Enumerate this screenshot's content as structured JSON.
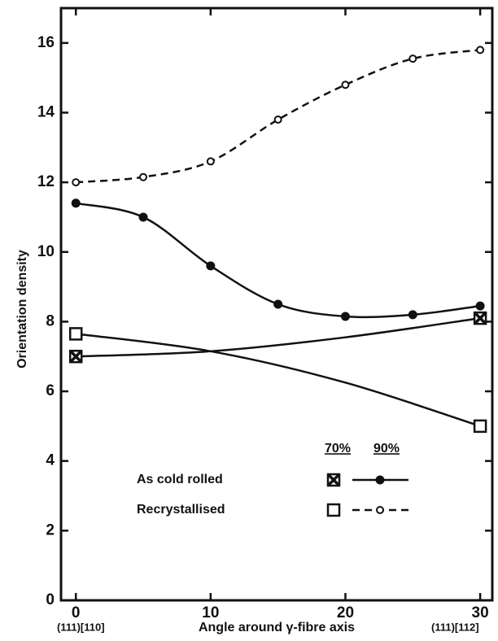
{
  "chart_data": {
    "type": "line",
    "ylabel": "Orientation density",
    "xlabel": "Angle around γ-fibre axis",
    "x_end_labels": [
      "(111)[110]",
      "(111)[112]"
    ],
    "xlim": [
      -1.1,
      30.9
    ],
    "ylim": [
      0,
      17
    ],
    "xticks": [
      0,
      10,
      20,
      30
    ],
    "yticks": [
      0,
      2,
      4,
      6,
      8,
      10,
      12,
      14,
      16
    ],
    "legend": {
      "columns": [
        "70%",
        "90%"
      ],
      "rows": [
        "As cold rolled",
        "Recrystallised"
      ]
    },
    "series": [
      {
        "color": "#111",
        "marker": "crossed-square",
        "dash": "solid",
        "x": [
          0,
          10,
          20,
          30
        ],
        "values": [
          7.0,
          7.15,
          7.55,
          8.1
        ],
        "marked": [
          true,
          false,
          false,
          true
        ]
      },
      {
        "color": "#111",
        "marker": "open-square",
        "dash": "solid",
        "x": [
          0,
          10,
          20,
          30
        ],
        "values": [
          7.65,
          7.15,
          6.25,
          5.0
        ],
        "marked": [
          true,
          false,
          false,
          true
        ]
      },
      {
        "color": "#111",
        "marker": "filled-circle",
        "dash": "solid",
        "x": [
          0,
          5,
          10,
          15,
          20,
          25,
          30
        ],
        "values": [
          11.4,
          11.0,
          9.6,
          8.5,
          8.15,
          8.2,
          8.45
        ],
        "marked": [
          true,
          true,
          true,
          true,
          true,
          true,
          true
        ]
      },
      {
        "color": "#111",
        "marker": "open-circle",
        "dash": "dashed",
        "x": [
          0,
          5,
          10,
          15,
          20,
          25,
          30
        ],
        "values": [
          12.0,
          12.15,
          12.6,
          13.8,
          14.8,
          15.55,
          15.8
        ],
        "marked": [
          true,
          true,
          true,
          true,
          true,
          true,
          true
        ]
      }
    ]
  }
}
